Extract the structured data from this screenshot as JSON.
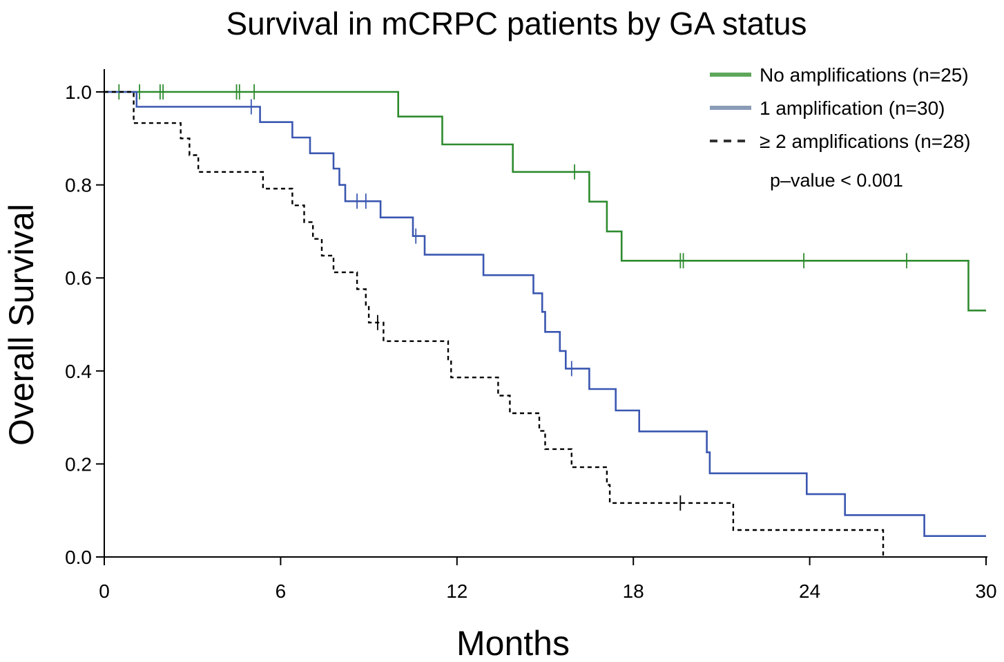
{
  "chart_data": {
    "type": "line",
    "subtype": "kaplan-meier",
    "title": "Survival in mCRPC patients by GA status",
    "xlabel": "Months",
    "ylabel": "Overall Survival",
    "xlim": [
      0,
      30
    ],
    "ylim": [
      0,
      1
    ],
    "xticks": [
      0,
      6,
      12,
      18,
      24,
      30
    ],
    "xtick_labels": [
      "0",
      "6",
      "12",
      "18",
      "24",
      "30"
    ],
    "yticks": [
      0,
      0.2,
      0.4,
      0.6,
      0.8,
      1.0
    ],
    "ytick_labels": [
      "0.0",
      "0.2",
      "0.4",
      "0.6",
      "0.8",
      "1.0"
    ],
    "grid": false,
    "legend_position": "top-right",
    "annotation": "p–value < 0.001",
    "series": [
      {
        "name": "No amplifications (n=25)",
        "color": "#2e8b2e",
        "legend_color": "#5ea75a",
        "dash": "solid",
        "steps": [
          [
            0,
            1.0
          ],
          [
            10.0,
            0.947
          ],
          [
            11.5,
            0.887
          ],
          [
            13.9,
            0.828
          ],
          [
            16.5,
            0.764
          ],
          [
            17.1,
            0.7
          ],
          [
            17.6,
            0.637
          ],
          [
            29.4,
            0.53
          ],
          [
            30,
            0.53
          ]
        ],
        "censor_times": [
          0.5,
          1.2,
          1.9,
          2.0,
          4.5,
          4.6,
          5.1,
          16.0,
          19.6,
          19.7,
          23.8,
          27.3
        ]
      },
      {
        "name": "1 amplification (n=30)",
        "color": "#3a56b0",
        "legend_color": "#8a9cb6",
        "dash": "solid",
        "steps": [
          [
            0,
            1.0
          ],
          [
            1.1,
            0.968
          ],
          [
            5.3,
            0.935
          ],
          [
            6.4,
            0.902
          ],
          [
            7.0,
            0.868
          ],
          [
            7.8,
            0.835
          ],
          [
            8.0,
            0.8
          ],
          [
            8.2,
            0.765
          ],
          [
            9.4,
            0.73
          ],
          [
            10.5,
            0.69
          ],
          [
            10.9,
            0.65
          ],
          [
            12.9,
            0.606
          ],
          [
            14.6,
            0.567
          ],
          [
            14.9,
            0.527
          ],
          [
            15.0,
            0.484
          ],
          [
            15.5,
            0.443
          ],
          [
            15.7,
            0.405
          ],
          [
            16.5,
            0.361
          ],
          [
            17.4,
            0.315
          ],
          [
            18.2,
            0.27
          ],
          [
            20.5,
            0.225
          ],
          [
            20.6,
            0.18
          ],
          [
            23.9,
            0.135
          ],
          [
            25.2,
            0.09
          ],
          [
            27.9,
            0.045
          ],
          [
            30,
            0.045
          ]
        ],
        "censor_times": [
          5.0,
          8.6,
          8.9,
          10.6,
          15.9
        ]
      },
      {
        "name": "≥ 2 amplifications (n=28)",
        "color": "#000000",
        "legend_color": "#333333",
        "dash": "dashed",
        "steps": [
          [
            0,
            1.0
          ],
          [
            1.0,
            0.933
          ],
          [
            2.6,
            0.9
          ],
          [
            2.9,
            0.864
          ],
          [
            3.2,
            0.828
          ],
          [
            5.4,
            0.792
          ],
          [
            6.4,
            0.756
          ],
          [
            6.8,
            0.72
          ],
          [
            7.1,
            0.684
          ],
          [
            7.4,
            0.648
          ],
          [
            7.8,
            0.612
          ],
          [
            8.6,
            0.576
          ],
          [
            8.9,
            0.54
          ],
          [
            9.0,
            0.504
          ],
          [
            9.5,
            0.464
          ],
          [
            11.7,
            0.425
          ],
          [
            11.8,
            0.386
          ],
          [
            13.4,
            0.347
          ],
          [
            13.8,
            0.309
          ],
          [
            14.8,
            0.271
          ],
          [
            15.0,
            0.232
          ],
          [
            15.9,
            0.193
          ],
          [
            17.1,
            0.155
          ],
          [
            17.2,
            0.116
          ],
          [
            21.4,
            0.058
          ],
          [
            26.5,
            0.0
          ]
        ],
        "censor_times": [
          9.3,
          19.6
        ]
      }
    ]
  }
}
